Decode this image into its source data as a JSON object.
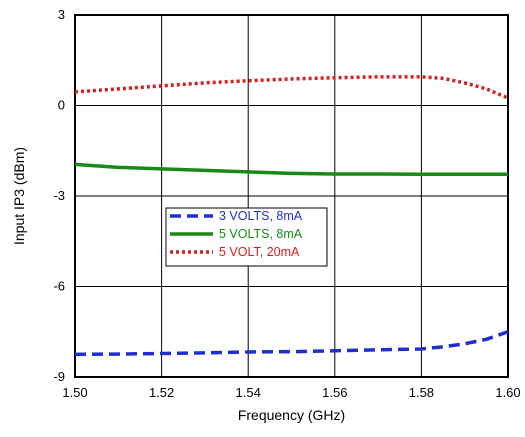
{
  "chart_data": {
    "type": "line",
    "title": "",
    "xlabel": "Frequency (GHz)",
    "ylabel": "Input IP3 (dBm)",
    "xlim": [
      1.5,
      1.6
    ],
    "ylim": [
      -9,
      3
    ],
    "x_ticks": [
      "1.50",
      "1.52",
      "1.54",
      "1.56",
      "1.58",
      "1.60"
    ],
    "y_ticks": [
      "3",
      "0",
      "-3",
      "-6",
      "-9"
    ],
    "grid": true,
    "legend_position": "center-left",
    "series": [
      {
        "name": "3 VOLTS, 8mA",
        "color": "#1f2fcf",
        "style": "dashed",
        "x": [
          1.5,
          1.51,
          1.52,
          1.53,
          1.54,
          1.55,
          1.56,
          1.57,
          1.58,
          1.585,
          1.59,
          1.595,
          1.6
        ],
        "y": [
          -8.25,
          -8.24,
          -8.22,
          -8.2,
          -8.17,
          -8.16,
          -8.13,
          -8.1,
          -8.07,
          -8.0,
          -7.9,
          -7.75,
          -7.5
        ]
      },
      {
        "name": "5 VOLTS, 8mA",
        "color": "#178a17",
        "style": "solid",
        "x": [
          1.5,
          1.51,
          1.52,
          1.53,
          1.54,
          1.55,
          1.56,
          1.57,
          1.58,
          1.59,
          1.6
        ],
        "y": [
          -1.95,
          -2.05,
          -2.1,
          -2.15,
          -2.2,
          -2.25,
          -2.27,
          -2.27,
          -2.28,
          -2.28,
          -2.28
        ]
      },
      {
        "name": "5 VOLT, 20mA",
        "color": "#d42020",
        "style": "dotted",
        "x": [
          1.5,
          1.51,
          1.52,
          1.53,
          1.54,
          1.55,
          1.56,
          1.57,
          1.58,
          1.585,
          1.59,
          1.595,
          1.6
        ],
        "y": [
          0.45,
          0.55,
          0.65,
          0.75,
          0.82,
          0.88,
          0.92,
          0.95,
          0.95,
          0.9,
          0.75,
          0.55,
          0.25
        ]
      }
    ]
  }
}
